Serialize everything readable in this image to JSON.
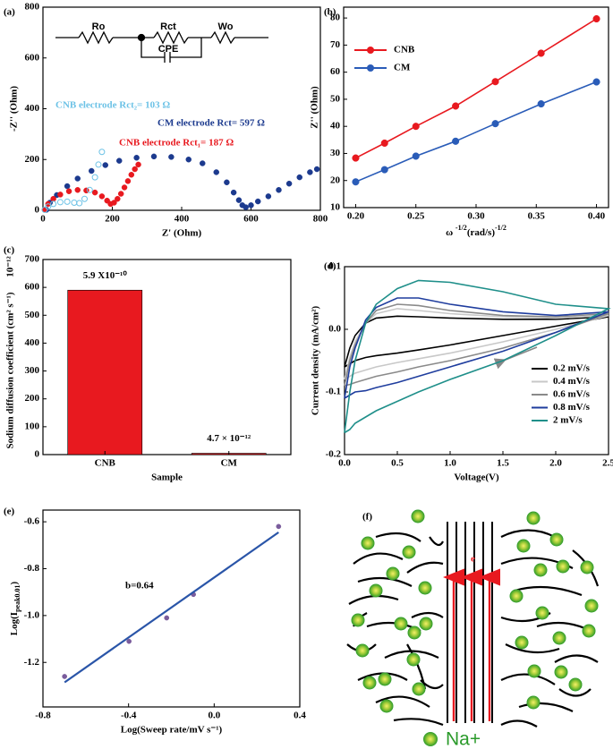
{
  "chart_data": [
    {
      "label": "(a)",
      "type": "scatter",
      "xlabel": "Z' (Ohm)",
      "ylabel": "-Z'' (Ohm)",
      "xlim": [
        0,
        800
      ],
      "ylim": [
        0,
        800
      ],
      "xticks": [
        0,
        200,
        400,
        600,
        800
      ],
      "yticks": [
        0,
        200,
        400,
        600,
        800
      ],
      "circuit": [
        "Ro",
        "Rct",
        "Wo",
        "CPE"
      ],
      "annotations": [
        {
          "text": "CNB electrode Rct₂= 103 Ω",
          "color": "#6cc2e6"
        },
        {
          "text": "CM electrode Rct= 597 Ω",
          "color": "#1c3a8e"
        },
        {
          "text": "CNB electrode Rct₁= 187 Ω",
          "color": "#e8191f"
        }
      ],
      "series": [
        {
          "color": "#1c3a8e",
          "x": [
            10,
            20,
            40,
            70,
            100,
            140,
            180,
            220,
            270,
            320,
            370,
            420,
            460,
            500,
            530,
            550,
            565,
            575,
            585,
            600,
            620,
            650,
            680,
            710,
            740,
            770,
            790
          ],
          "values": [
            2,
            30,
            60,
            95,
            125,
            155,
            178,
            195,
            207,
            212,
            210,
            200,
            185,
            150,
            110,
            70,
            40,
            20,
            12,
            20,
            35,
            55,
            80,
            105,
            130,
            150,
            162
          ]
        },
        {
          "color": "#e8191f",
          "x": [
            5,
            15,
            30,
            50,
            75,
            100,
            125,
            150,
            170,
            185,
            195,
            205,
            215,
            225,
            235,
            245,
            255,
            265,
            275
          ],
          "values": [
            3,
            25,
            45,
            62,
            75,
            80,
            78,
            70,
            55,
            38,
            25,
            30,
            45,
            65,
            90,
            115,
            140,
            162,
            180
          ]
        },
        {
          "color": "#6cc2e6",
          "marker": "open",
          "x": [
            5,
            15,
            30,
            50,
            70,
            90,
            105,
            120,
            135,
            150,
            160,
            170
          ],
          "values": [
            2,
            15,
            25,
            32,
            34,
            30,
            28,
            45,
            80,
            130,
            180,
            230
          ]
        }
      ]
    },
    {
      "label": "(b)",
      "type": "line",
      "markers": true,
      "legend": "upper left",
      "xlabel": [
        "ω ",
        "-1/2",
        "(rad/s)",
        "-1/2"
      ],
      "ylabel": "Z'' (Ohm)",
      "xlim": [
        0.19,
        0.41
      ],
      "ylim": [
        10,
        84
      ],
      "xticks": [
        {
          "value": 0.2,
          "label": "0.20"
        },
        0.25,
        {
          "value": 0.3,
          "label": "0.30"
        },
        0.35,
        {
          "value": 0.4,
          "label": "0.40"
        }
      ],
      "yticks": [
        10,
        20,
        30,
        40,
        50,
        60,
        70,
        80
      ],
      "x": [
        0.2,
        0.224,
        0.25,
        0.283,
        0.316,
        0.354,
        0.4
      ],
      "series": [
        {
          "name": "CNB",
          "color": "#e8191f",
          "values": [
            28.3,
            33.8,
            40,
            47.5,
            56.5,
            67,
            79.7
          ]
        },
        {
          "name": "CM",
          "color": "#2a5cb8",
          "values": [
            19.5,
            24,
            29,
            34.5,
            41,
            48.3,
            56.4
          ]
        }
      ]
    },
    {
      "label": "(c)",
      "type": "bar",
      "xlabel": "Sample",
      "ylabel": "Sodium diffusion coefficient  (cm² s⁻¹)",
      "y_multiplier": "10⁻¹²",
      "ylim": [
        0,
        700
      ],
      "yticks": [
        0,
        100,
        200,
        300,
        400,
        500,
        600,
        700
      ],
      "categories": [
        "CNB",
        "CM"
      ],
      "values": [
        590,
        4.7
      ],
      "value_labels": [
        "5.9 X10⁻¹⁰",
        "4.7 × 10⁻¹²"
      ],
      "color": "#e8191f"
    },
    {
      "label": "(d)",
      "type": "line",
      "legend": "lower right",
      "xlabel": "Voltage(V)",
      "ylabel": "Current density (mA/cm²)",
      "xlim": [
        0,
        2.5
      ],
      "ylim": [
        -0.2,
        0.1
      ],
      "xticks": [
        {
          "value": 0,
          "label": "0.0"
        },
        0.5,
        {
          "value": 1,
          "label": "1.0"
        },
        1.5,
        {
          "value": 2,
          "label": "2.0"
        },
        2.5
      ],
      "yticks": [
        -0.2,
        -0.1,
        {
          "value": 0,
          "label": "0.0"
        },
        0.1
      ],
      "x": [
        0,
        0.05,
        0.1,
        0.2,
        0.3,
        0.5,
        0.7,
        1.0,
        1.5,
        2.0,
        2.5,
        2.0,
        1.5,
        1.0,
        0.7,
        0.5,
        0.3,
        0.2,
        0.1,
        0.05,
        0
      ],
      "series": [
        {
          "name": "0.2 mV/s",
          "color": "#000000",
          "values": [
            -0.06,
            -0.03,
            -0.01,
            0.01,
            0.018,
            0.021,
            0.02,
            0.018,
            0.016,
            0.016,
            0.02,
            0.005,
            -0.01,
            -0.025,
            -0.033,
            -0.038,
            -0.042,
            -0.045,
            -0.05,
            -0.055,
            -0.06
          ]
        },
        {
          "name": "0.4 mV/s",
          "color": "#c8c8c8",
          "values": [
            -0.08,
            -0.045,
            -0.02,
            0.01,
            0.025,
            0.033,
            0.03,
            0.025,
            0.02,
            0.018,
            0.022,
            0.0,
            -0.02,
            -0.038,
            -0.047,
            -0.053,
            -0.06,
            -0.065,
            -0.07,
            -0.075,
            -0.08
          ]
        },
        {
          "name": "0.6 mV/s",
          "color": "#8a8a8a",
          "values": [
            -0.09,
            -0.05,
            -0.025,
            0.01,
            0.03,
            0.04,
            0.038,
            0.03,
            0.022,
            0.02,
            0.025,
            -0.005,
            -0.03,
            -0.05,
            -0.06,
            -0.068,
            -0.075,
            -0.08,
            -0.085,
            -0.088,
            -0.09
          ]
        },
        {
          "name": "0.8 mV/s",
          "color": "#1f3d9e",
          "values": [
            -0.11,
            -0.06,
            -0.03,
            0.015,
            0.035,
            0.05,
            0.05,
            0.04,
            0.028,
            0.022,
            0.028,
            -0.005,
            -0.035,
            -0.06,
            -0.075,
            -0.085,
            -0.093,
            -0.098,
            -0.1,
            -0.105,
            -0.11
          ]
        },
        {
          "name": "2 mV/s",
          "color": "#1f8f8a",
          "values": [
            -0.165,
            -0.1,
            -0.05,
            0.01,
            0.04,
            0.065,
            0.078,
            0.075,
            0.06,
            0.04,
            0.033,
            -0.01,
            -0.05,
            -0.08,
            -0.1,
            -0.115,
            -0.13,
            -0.14,
            -0.15,
            -0.16,
            -0.165
          ]
        }
      ]
    },
    {
      "label": "(e)",
      "type": "scatter",
      "xlabel": "Log(Sweep rate/mV s⁻¹)",
      "ylabel": [
        "Log(I",
        "peak0.01",
        ")"
      ],
      "xlim": [
        -0.8,
        0.4
      ],
      "ylim": [
        -1.39,
        -0.55
      ],
      "xticks": [
        -0.8,
        -0.4,
        {
          "value": 0,
          "label": "0.0"
        },
        0.4
      ],
      "yticks": [
        -1.2,
        {
          "value": -1,
          "label": "-1.0"
        },
        -0.8,
        -0.6
      ],
      "annotations": [
        {
          "text": "b=0.64",
          "color": "#000000"
        }
      ],
      "series": [
        {
          "color": "#7a5c9c",
          "x": [
            -0.699,
            -0.398,
            -0.222,
            -0.097,
            0.301
          ],
          "values": [
            -1.26,
            -1.11,
            -1.01,
            -0.91,
            -0.62
          ]
        },
        {
          "color": "#2a55a8",
          "type": "line",
          "x": [
            -0.699,
            0.301
          ],
          "values": [
            -1.285,
            -0.645
          ]
        }
      ]
    }
  ],
  "diagram": {
    "label": "(f)",
    "electron": "e",
    "legend": "Na+"
  }
}
